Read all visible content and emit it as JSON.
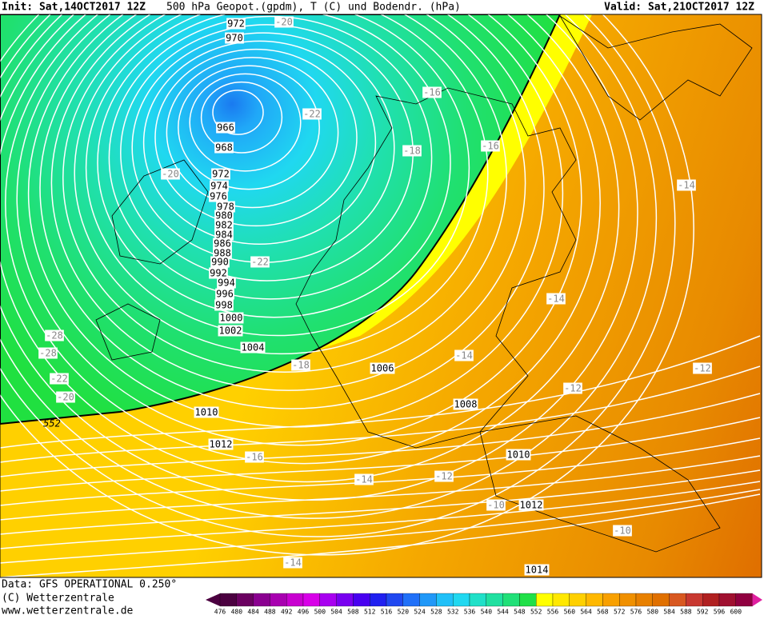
{
  "header": {
    "init": "Init: Sat,14OCT2017 12Z",
    "title": "500 hPa Geopot.(gpdm), T (C) und Bodendr. (hPa)",
    "valid": "Valid: Sat,21OCT2017 12Z"
  },
  "map": {
    "isobar_labels": [
      "972",
      "970",
      "966",
      "968",
      "972",
      "974",
      "976",
      "978",
      "980",
      "982",
      "984",
      "986",
      "988",
      "990",
      "992",
      "994",
      "996",
      "998",
      "1000",
      "1002",
      "1004",
      "1006",
      "1008",
      "1010",
      "1010",
      "1012",
      "1012",
      "1014"
    ],
    "temperature_labels": [
      "-20",
      "-16",
      "-22",
      "-18",
      "-16",
      "-20",
      "-14",
      "-22",
      "-28",
      "-28",
      "-14",
      "-18",
      "-14",
      "-12",
      "-22",
      "-20",
      "-12",
      "-16",
      "-14",
      "-12",
      "-10",
      "-10",
      "-14"
    ],
    "geopotential_label": "552"
  },
  "footer": {
    "data": "Data: GFS OPERATIONAL 0.250°",
    "copyright": "(C) Wetterzentrale",
    "url": "www.wetterzentrale.de"
  },
  "colorbar": {
    "labels": [
      "476",
      "480",
      "484",
      "488",
      "492",
      "496",
      "500",
      "504",
      "508",
      "512",
      "516",
      "520",
      "524",
      "528",
      "532",
      "536",
      "540",
      "544",
      "548",
      "552",
      "556",
      "560",
      "564",
      "568",
      "572",
      "576",
      "580",
      "584",
      "588",
      "592",
      "596",
      "600"
    ]
  }
}
